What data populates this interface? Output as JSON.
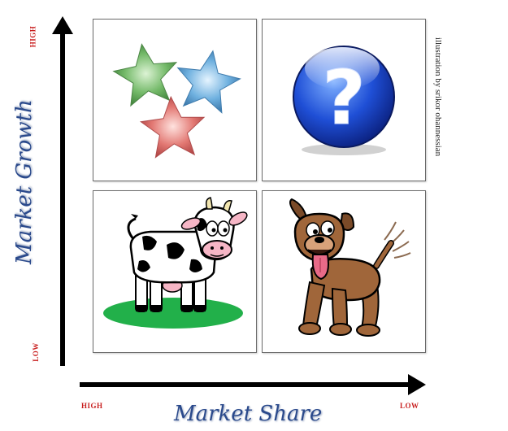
{
  "y_axis": {
    "title": "Market Growth",
    "high_label": "HIGH",
    "low_label": "LOW"
  },
  "x_axis": {
    "title": "Market Share",
    "high_label": "HIGH",
    "low_label": "LOW"
  },
  "credit": "illustration by srikor ohannessian",
  "colors": {
    "axis_title": "#2b4a8c",
    "tick_labels": "#c81e1e",
    "axis_arrows": "#000000"
  },
  "quadrants": [
    {
      "position": "top-left",
      "icon": "stars-icon"
    },
    {
      "position": "top-right",
      "icon": "question-mark-icon"
    },
    {
      "position": "bottom-left",
      "icon": "cow-icon"
    },
    {
      "position": "bottom-right",
      "icon": "dog-icon"
    }
  ]
}
